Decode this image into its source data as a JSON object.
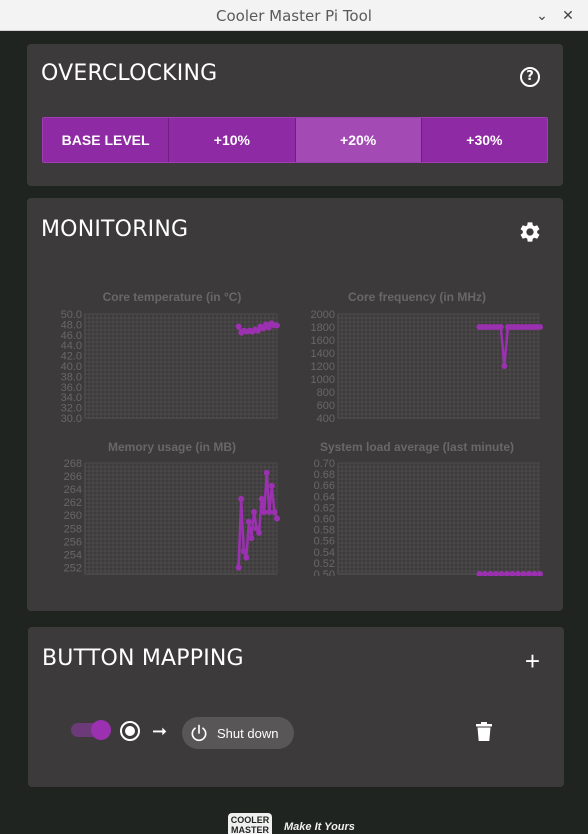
{
  "window": {
    "title": "Cooler Master Pi Tool"
  },
  "overclocking": {
    "title": "OVERCLOCKING",
    "levels": [
      "BASE LEVEL",
      "+10%",
      "+20%",
      "+30%"
    ],
    "selected": "+20%"
  },
  "monitoring": {
    "title": "MONITORING",
    "charts": {
      "core_temp_title": "Core temperature (in °C)",
      "core_freq_title": "Core frequency (in MHz)",
      "memory_title": "Memory usage (in MB)",
      "load_title": "System load average (last minute)"
    }
  },
  "button_mapping": {
    "title": "BUTTON MAPPING",
    "mapping": {
      "enabled": true,
      "action_label": "Shut down"
    }
  },
  "footer": {
    "logo_text": "COOLER MASTER",
    "tagline": "Make It Yours"
  },
  "colors": {
    "accent": "#8e2aa3",
    "panel": "#3c3a3a",
    "background": "#1f2420",
    "series": "#9b30b0"
  },
  "chart_data": [
    {
      "type": "line",
      "title": "Core temperature (in °C)",
      "ylim": [
        30.0,
        50.0
      ],
      "yticks": [
        "50.0",
        "48.0",
        "46.0",
        "44.0",
        "42.0",
        "40.0",
        "38.0",
        "36.0",
        "34.0",
        "32.0",
        "30.0"
      ],
      "series": [
        {
          "values": [
            47.6,
            46.4,
            46.8,
            46.6,
            46.8,
            46.6,
            47.0,
            46.8,
            47.6,
            47.2,
            48.0,
            47.4,
            48.2,
            47.8,
            47.8
          ]
        }
      ],
      "grid": true
    },
    {
      "type": "line",
      "title": "Core frequency (in MHz)",
      "ylim": [
        400,
        2000
      ],
      "yticks": [
        "2000",
        "1800",
        "1600",
        "1400",
        "1200",
        "1000",
        "800",
        "600",
        "400"
      ],
      "series": [
        {
          "values": [
            1800,
            1800,
            1800,
            1800,
            1800,
            1800,
            1800,
            1200,
            1800,
            1800,
            1800,
            1800,
            1800,
            1800,
            1800,
            1800,
            1800,
            1800
          ]
        }
      ],
      "grid": true
    },
    {
      "type": "line",
      "title": "Memory usage (in MB)",
      "ylim": [
        251,
        268
      ],
      "yticks": [
        "268",
        "266",
        "264",
        "262",
        "260",
        "258",
        "256",
        "254",
        "252"
      ],
      "series": [
        {
          "values": [
            252,
            262.5,
            254.5,
            253.5,
            259,
            256.5,
            260.5,
            258,
            257.3,
            262.5,
            260.5,
            266.5,
            260.5,
            264.5,
            260.5,
            259.5
          ]
        }
      ],
      "grid": true
    },
    {
      "type": "line",
      "title": "System load average (last minute)",
      "ylim": [
        0.5,
        0.7
      ],
      "yticks": [
        "0.70",
        "0.68",
        "0.66",
        "0.64",
        "0.62",
        "0.60",
        "0.58",
        "0.56",
        "0.54",
        "0.52",
        "0.50"
      ],
      "series": [
        {
          "values": [
            0.5,
            0.5,
            0.5,
            0.5,
            0.5,
            0.5,
            0.5,
            0.5,
            0.5,
            0.5,
            0.5,
            0.5
          ]
        }
      ],
      "grid": true
    }
  ]
}
